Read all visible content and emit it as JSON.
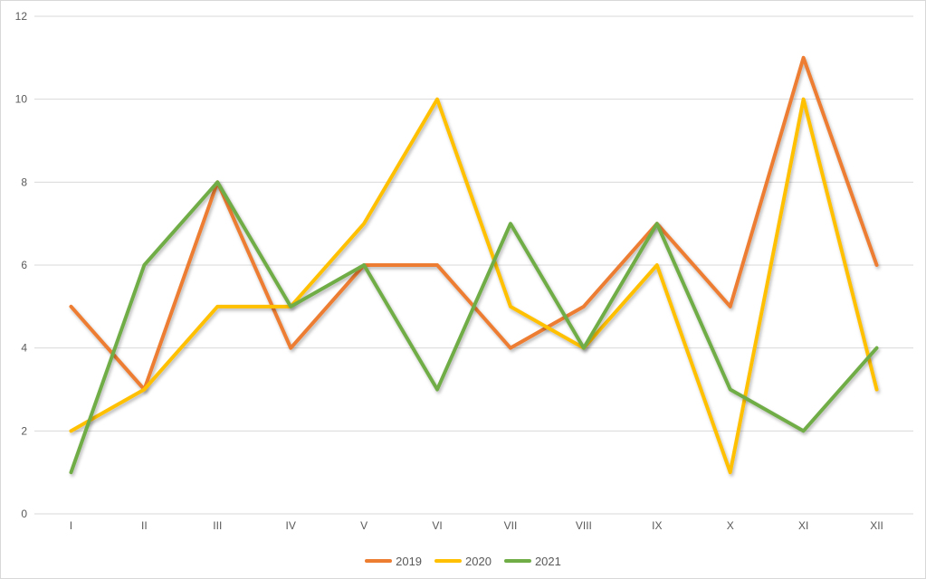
{
  "chart_data": {
    "type": "line",
    "title": "",
    "xlabel": "",
    "ylabel": "",
    "categories": [
      "I",
      "II",
      "III",
      "IV",
      "V",
      "VI",
      "VII",
      "VIII",
      "IX",
      "X",
      "XI",
      "XII"
    ],
    "series": [
      {
        "name": "2019",
        "color": "#ED7D31",
        "values": [
          5,
          3,
          8,
          4,
          6,
          6,
          4,
          5,
          7,
          5,
          11,
          6
        ]
      },
      {
        "name": "2020",
        "color": "#FFC000",
        "values": [
          2,
          3,
          5,
          5,
          7,
          10,
          5,
          4,
          6,
          1,
          10,
          3
        ]
      },
      {
        "name": "2021",
        "color": "#70AD47",
        "values": [
          1,
          6,
          8,
          5,
          6,
          3,
          7,
          4,
          7,
          3,
          2,
          4
        ]
      }
    ],
    "ylim": [
      0,
      12
    ],
    "yticks": [
      0,
      2,
      4,
      6,
      8,
      10,
      12
    ],
    "grid": "horizontal",
    "gridline_color": "#D9D9D9",
    "tick_label_color": "#595959",
    "background_color": "#FFFFFF",
    "legend_position": "bottom"
  }
}
